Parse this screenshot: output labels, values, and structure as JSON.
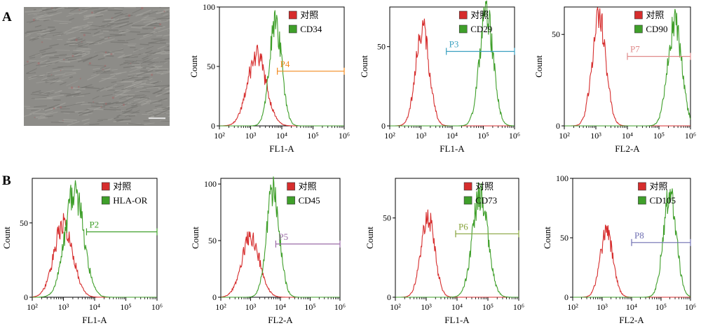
{
  "panels": {
    "a": "A",
    "b": "B"
  },
  "colors": {
    "control": "#d62d2d",
    "marker": "#3f9f2a",
    "axis": "#000000"
  },
  "chart_data": [
    {
      "type": "area",
      "id": "cd34",
      "panel": "A",
      "xscale": "log",
      "xlim": [
        100,
        1000000
      ],
      "ylim": [
        0,
        100
      ],
      "yticks": [
        0,
        50,
        100
      ],
      "xticks": [
        "10²",
        "10³",
        "10⁴",
        "10⁵",
        "10⁶"
      ],
      "xlabel": "FL1-A",
      "ylabel": "Count",
      "legend": [
        "对照",
        "CD34"
      ],
      "control": {
        "peak_log": 3.2,
        "peak": 60,
        "width": 0.3
      },
      "marker": {
        "peak_log": 3.8,
        "peak": 87,
        "width": 0.2
      },
      "gate": {
        "label": "P4",
        "start": 7200,
        "end": 1000000,
        "level": 46,
        "color": "#f28a1e"
      }
    },
    {
      "type": "area",
      "id": "cd29",
      "panel": "A",
      "xscale": "log",
      "xlim": [
        100,
        1000000
      ],
      "ylim": [
        0,
        75
      ],
      "yticks": [
        0,
        50
      ],
      "xticks": [
        "10²",
        "10³",
        "10⁴",
        "10⁵",
        "10⁶"
      ],
      "xlabel": "FL1-A",
      "ylabel": "Count",
      "legend": [
        "对照",
        "CD29"
      ],
      "control": {
        "peak_log": 3.05,
        "peak": 62,
        "width": 0.22
      },
      "marker": {
        "peak_log": 5.1,
        "peak": 72,
        "width": 0.22
      },
      "gate": {
        "label": "P3",
        "start": 6500,
        "end": 1000000,
        "level": 47,
        "color": "#3aa0c0"
      }
    },
    {
      "type": "area",
      "id": "cd90",
      "panel": "A",
      "xscale": "log",
      "xlim": [
        100,
        1000000
      ],
      "ylim": [
        0,
        65
      ],
      "yticks": [
        0,
        50
      ],
      "xticks": [
        "10²",
        "10³",
        "10⁴",
        "10⁵",
        "10⁶"
      ],
      "xlabel": "FL2-A",
      "ylabel": "Count",
      "legend": [
        "对照",
        "CD90"
      ],
      "control": {
        "peak_log": 3.1,
        "peak": 60,
        "width": 0.22
      },
      "marker": {
        "peak_log": 5.5,
        "peak": 57,
        "width": 0.22
      },
      "gate": {
        "label": "P7",
        "start": 10000,
        "end": 1000000,
        "level": 38,
        "color": "#e08a8a"
      }
    },
    {
      "type": "area",
      "id": "hla",
      "panel": "B",
      "xscale": "log",
      "xlim": [
        100,
        1000000
      ],
      "ylim": [
        0,
        80
      ],
      "yticks": [
        0,
        50
      ],
      "xticks": [
        "10²",
        "10³",
        "10⁴",
        "10⁵",
        "10⁶"
      ],
      "xlabel": "FL1-A",
      "ylabel": "Count",
      "legend": [
        "对照",
        "HLA-OR"
      ],
      "control": {
        "peak_log": 3.0,
        "peak": 50,
        "width": 0.3
      },
      "marker": {
        "peak_log": 3.35,
        "peak": 72,
        "width": 0.3
      },
      "gate": {
        "label": "P2",
        "start": 5500,
        "end": 1000000,
        "level": 44,
        "color": "#3f9f2a"
      }
    },
    {
      "type": "area",
      "id": "cd45",
      "panel": "B",
      "xscale": "log",
      "xlim": [
        100,
        1000000
      ],
      "ylim": [
        0,
        105
      ],
      "yticks": [
        0,
        50,
        100
      ],
      "xticks": [
        "10²",
        "10³",
        "10⁴",
        "10⁵",
        "10⁶"
      ],
      "xlabel": "FL2-A",
      "ylabel": "Count",
      "legend": [
        "对照",
        "CD45"
      ],
      "control": {
        "peak_log": 3.0,
        "peak": 55,
        "width": 0.3
      },
      "marker": {
        "peak_log": 3.75,
        "peak": 95,
        "width": 0.22
      },
      "gate": {
        "label": "P5",
        "start": 7000,
        "end": 1000000,
        "level": 47,
        "color": "#9a6aa6"
      }
    },
    {
      "type": "area",
      "id": "cd73",
      "panel": "B",
      "xscale": "log",
      "xlim": [
        100,
        1000000
      ],
      "ylim": [
        0,
        75
      ],
      "yticks": [
        0,
        50
      ],
      "xticks": [
        "10²",
        "10³",
        "10⁴",
        "10⁵",
        "10⁶"
      ],
      "xlabel": "FL1-A",
      "ylabel": "Count",
      "legend": [
        "对照",
        "CD73"
      ],
      "control": {
        "peak_log": 3.05,
        "peak": 53,
        "width": 0.22
      },
      "marker": {
        "peak_log": 4.75,
        "peak": 66,
        "width": 0.25
      },
      "gate": {
        "label": "P6",
        "start": 9000,
        "end": 1000000,
        "level": 40,
        "color": "#86a23a"
      }
    },
    {
      "type": "area",
      "id": "cd105",
      "panel": "B",
      "xscale": "log",
      "xlim": [
        100,
        1000000
      ],
      "ylim": [
        0,
        100
      ],
      "yticks": [
        0,
        50,
        100
      ],
      "xticks": [
        "10²",
        "10³",
        "10⁴",
        "10⁵",
        "10⁶"
      ],
      "xlabel": "FL2-A",
      "ylabel": "Count",
      "legend": [
        "对照",
        "CD105"
      ],
      "control": {
        "peak_log": 3.15,
        "peak": 55,
        "width": 0.22
      },
      "marker": {
        "peak_log": 5.3,
        "peak": 88,
        "width": 0.22
      },
      "gate": {
        "label": "P8",
        "start": 10000,
        "end": 1000000,
        "level": 46,
        "color": "#6f6fb2"
      }
    }
  ]
}
